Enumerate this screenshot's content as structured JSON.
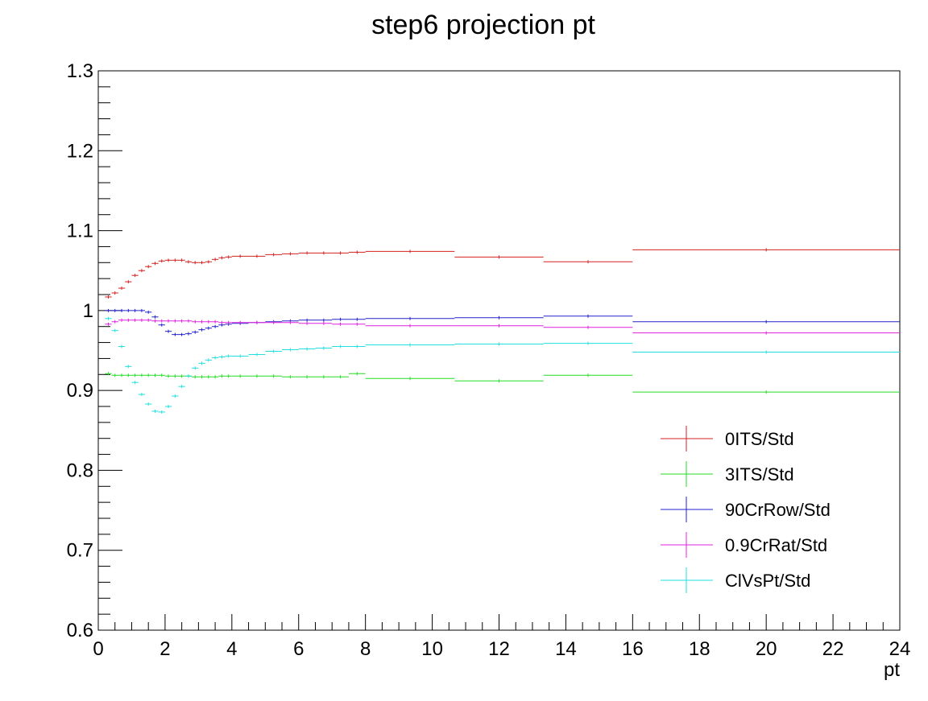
{
  "chart_data": {
    "type": "histogram",
    "title": "step6 projection pt",
    "x_label": "pt",
    "bins": [
      0.2,
      0.4,
      0.6,
      0.8,
      1.0,
      1.2,
      1.4,
      1.6,
      1.8,
      2.0,
      2.2,
      2.4,
      2.6,
      2.8,
      3.0,
      3.2,
      3.4,
      3.6,
      3.8,
      4.0,
      4.5,
      5.0,
      5.5,
      6.0,
      6.5,
      7.0,
      7.5,
      8.0,
      10.67,
      13.33,
      16,
      24
    ],
    "series": [
      {
        "name": "0ITS/Std",
        "color": "#d42020",
        "values": [
          1.017,
          1.022,
          1.028,
          1.036,
          1.044,
          1.05,
          1.055,
          1.059,
          1.062,
          1.063,
          1.063,
          1.063,
          1.061,
          1.06,
          1.06,
          1.061,
          1.064,
          1.066,
          1.067,
          1.068,
          1.068,
          1.07,
          1.071,
          1.072,
          1.072,
          1.072,
          1.073,
          1.074,
          1.067,
          1.061,
          1.076
        ]
      },
      {
        "name": "3ITS/Std",
        "color": "#22dd22",
        "values": [
          0.921,
          0.919,
          0.919,
          0.919,
          0.919,
          0.919,
          0.919,
          0.919,
          0.919,
          0.918,
          0.918,
          0.918,
          0.918,
          0.917,
          0.917,
          0.917,
          0.917,
          0.918,
          0.918,
          0.918,
          0.918,
          0.918,
          0.917,
          0.917,
          0.917,
          0.917,
          0.921,
          0.915,
          0.912,
          0.919,
          0.898
        ]
      },
      {
        "name": "90CrRow/Std",
        "color": "#2020cc",
        "values": [
          1.0,
          1.0,
          1.0,
          1.0,
          1.0,
          1.0,
          0.998,
          0.992,
          0.982,
          0.974,
          0.97,
          0.97,
          0.971,
          0.973,
          0.976,
          0.978,
          0.98,
          0.982,
          0.983,
          0.984,
          0.985,
          0.986,
          0.987,
          0.988,
          0.988,
          0.989,
          0.989,
          0.99,
          0.991,
          0.993,
          0.986
        ]
      },
      {
        "name": "0.9CrRat/Std",
        "color": "#e020e0",
        "values": [
          0.983,
          0.986,
          0.988,
          0.988,
          0.988,
          0.988,
          0.988,
          0.987,
          0.987,
          0.987,
          0.987,
          0.987,
          0.987,
          0.986,
          0.986,
          0.986,
          0.986,
          0.985,
          0.985,
          0.985,
          0.985,
          0.985,
          0.985,
          0.984,
          0.984,
          0.983,
          0.983,
          0.981,
          0.981,
          0.979,
          0.972
        ]
      },
      {
        "name": "ClVsPt/Std",
        "color": "#22e0e0",
        "values": [
          0.99,
          0.975,
          0.955,
          0.93,
          0.91,
          0.895,
          0.883,
          0.874,
          0.873,
          0.88,
          0.893,
          0.905,
          0.918,
          0.928,
          0.934,
          0.938,
          0.941,
          0.942,
          0.943,
          0.943,
          0.945,
          0.949,
          0.951,
          0.952,
          0.953,
          0.955,
          0.955,
          0.957,
          0.958,
          0.959,
          0.948
        ]
      }
    ],
    "xlim": [
      0,
      24
    ],
    "xticks": [
      0,
      2,
      4,
      6,
      8,
      10,
      12,
      14,
      16,
      18,
      20,
      22,
      24
    ],
    "ylim": [
      0.6,
      1.3
    ],
    "yticks": [
      0.6,
      0.7,
      0.8,
      0.9,
      1,
      1.1,
      1.2,
      1.3
    ],
    "legend": "lower-right"
  }
}
